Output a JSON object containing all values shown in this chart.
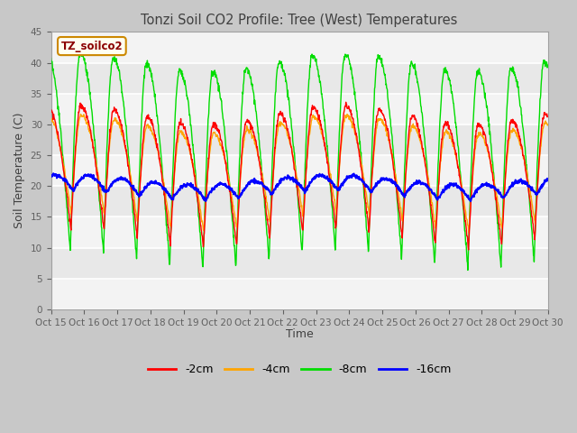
{
  "title": "Tonzi Soil CO2 Profile: Tree (West) Temperatures",
  "xlabel": "Time",
  "ylabel": "Soil Temperature (C)",
  "ylim": [
    0,
    45
  ],
  "yticks": [
    0,
    5,
    10,
    15,
    20,
    25,
    30,
    35,
    40,
    45
  ],
  "xtick_labels": [
    "Oct 15",
    "Oct 16",
    "Oct 17",
    "Oct 18",
    "Oct 19",
    "Oct 20",
    "Oct 21",
    "Oct 22",
    "Oct 23",
    "Oct 24",
    "Oct 25",
    "Oct 26",
    "Oct 27",
    "Oct 28",
    "Oct 29",
    "Oct 30"
  ],
  "colors": {
    "2cm": "#ff0000",
    "4cm": "#ffa500",
    "8cm": "#00dd00",
    "16cm": "#0000ff"
  },
  "legend_labels": [
    "-2cm",
    "-4cm",
    "-8cm",
    "-16cm"
  ],
  "inset_label": "TZ_soilco2",
  "inset_label_color": "#8b0000",
  "inset_bg": "#fffff0",
  "inset_border": "#cc8800",
  "fig_bg": "#c8c8c8",
  "plot_bg": "#e8e8e8",
  "band_color": "#d0d0d0",
  "n_days": 15,
  "points_per_day": 96
}
